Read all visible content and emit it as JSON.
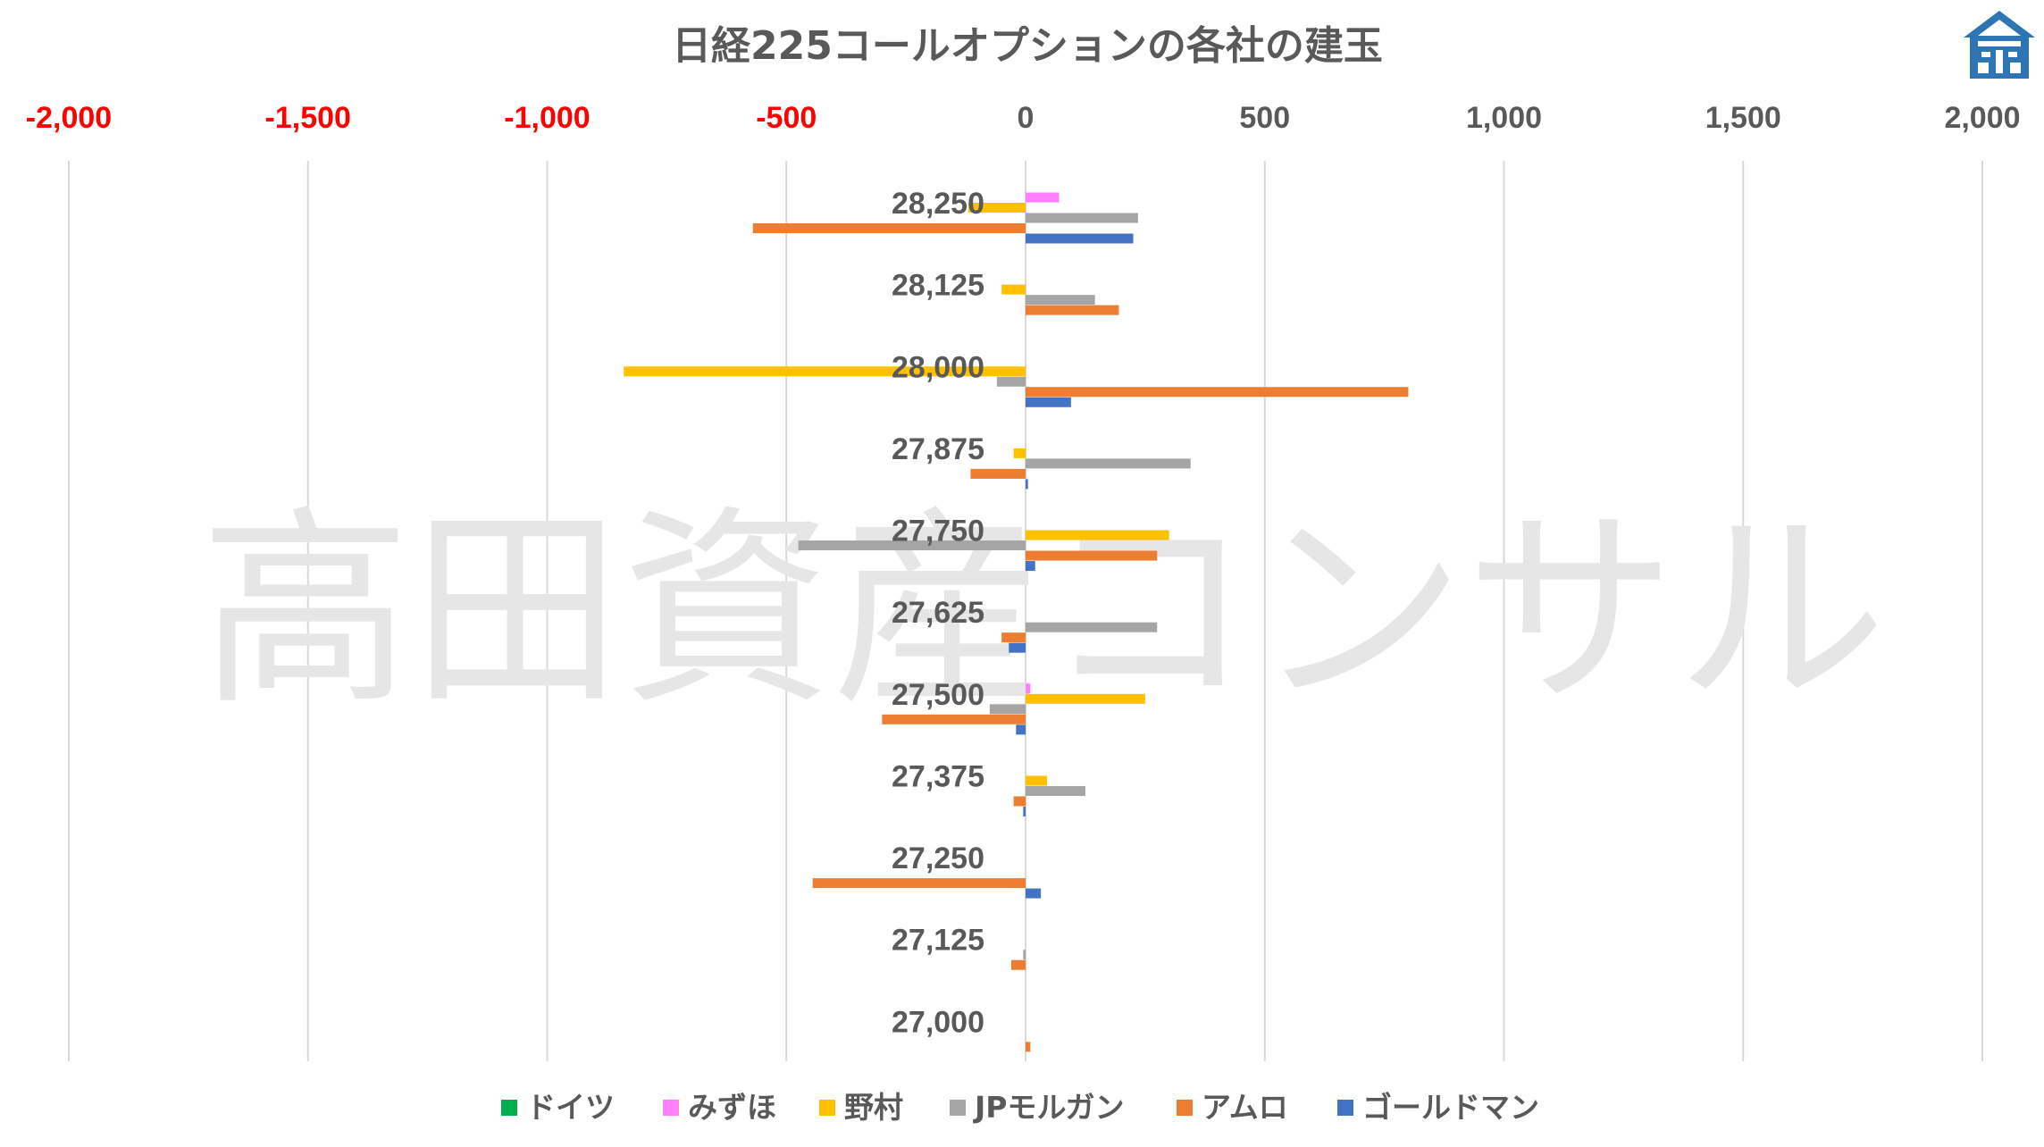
{
  "chart_data": {
    "type": "bar",
    "orientation": "horizontal",
    "title": "日経225コールオプションの各社の建玉",
    "watermark": "高田資産コンサル",
    "xlim": [
      -2000,
      2000
    ],
    "xticks": [
      -2000,
      -1500,
      -1000,
      -500,
      0,
      500,
      1000,
      1500,
      2000
    ],
    "xtick_labels": [
      "-2,000",
      "-1,500",
      "-1,000",
      "-500",
      "0",
      "500",
      "1,000",
      "1,500",
      "2,000"
    ],
    "negative_tick_color": "#ff0000",
    "positive_tick_color": "#595959",
    "grid": true,
    "legend_position": "bottom",
    "categories": [
      "28,250",
      "28,125",
      "28,000",
      "27,875",
      "27,750",
      "27,625",
      "27,500",
      "27,375",
      "27,250",
      "27,125",
      "27,000"
    ],
    "series": [
      {
        "name": "ドイツ",
        "color": "#00b050",
        "values": [
          0,
          0,
          0,
          0,
          0,
          0,
          0,
          0,
          0,
          0,
          0
        ]
      },
      {
        "name": "みずほ",
        "color": "#ff80ff",
        "values": [
          70,
          0,
          0,
          0,
          0,
          0,
          10,
          0,
          0,
          0,
          0
        ]
      },
      {
        "name": "野村",
        "color": "#ffc000",
        "values": [
          -120,
          -50,
          -840,
          -25,
          300,
          0,
          250,
          45,
          0,
          0,
          0
        ]
      },
      {
        "name": "JPモルガン",
        "color": "#a5a5a5",
        "values": [
          235,
          145,
          -60,
          345,
          -475,
          275,
          -75,
          125,
          0,
          -5,
          0
        ]
      },
      {
        "name": "アムロ",
        "color": "#ed7d31",
        "values": [
          -570,
          195,
          800,
          -115,
          275,
          -50,
          -300,
          -25,
          -445,
          -30,
          10
        ]
      },
      {
        "name": "ゴールドマン",
        "color": "#4472c4",
        "values": [
          225,
          0,
          95,
          5,
          20,
          -35,
          -20,
          -5,
          32,
          0,
          0
        ]
      }
    ]
  },
  "logo": {
    "icon": "house-logo-icon",
    "color": "#2e75b6"
  }
}
